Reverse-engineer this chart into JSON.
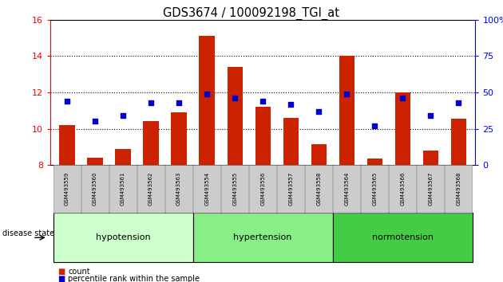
{
  "title": "GDS3674 / 100092198_TGI_at",
  "samples": [
    "GSM493559",
    "GSM493560",
    "GSM493561",
    "GSM493562",
    "GSM493563",
    "GSM493554",
    "GSM493555",
    "GSM493556",
    "GSM493557",
    "GSM493558",
    "GSM493564",
    "GSM493565",
    "GSM493566",
    "GSM493567",
    "GSM493568"
  ],
  "bar_values": [
    10.2,
    8.4,
    8.9,
    10.4,
    10.9,
    15.1,
    13.4,
    11.2,
    10.6,
    9.15,
    14.0,
    8.35,
    12.0,
    8.8,
    10.55
  ],
  "dot_values": [
    44,
    30,
    34,
    43,
    43,
    49,
    46,
    44,
    42,
    37,
    49,
    27,
    46,
    34,
    43
  ],
  "bar_color": "#cc2200",
  "dot_color": "#0000cc",
  "ylim_left": [
    8,
    16
  ],
  "ylim_right": [
    0,
    100
  ],
  "yticks_left": [
    8,
    10,
    12,
    14,
    16
  ],
  "yticks_right": [
    0,
    25,
    50,
    75,
    100
  ],
  "groups": [
    {
      "label": "hypotension",
      "start": 0,
      "end": 5,
      "color": "#ccffcc"
    },
    {
      "label": "hypertension",
      "start": 5,
      "end": 10,
      "color": "#88ee88"
    },
    {
      "label": "normotension",
      "start": 10,
      "end": 15,
      "color": "#44cc44"
    }
  ],
  "group_label": "disease state",
  "legend_count_label": "count",
  "legend_pct_label": "percentile rank within the sample",
  "background_color": "#ffffff",
  "plot_bg_color": "#ffffff"
}
